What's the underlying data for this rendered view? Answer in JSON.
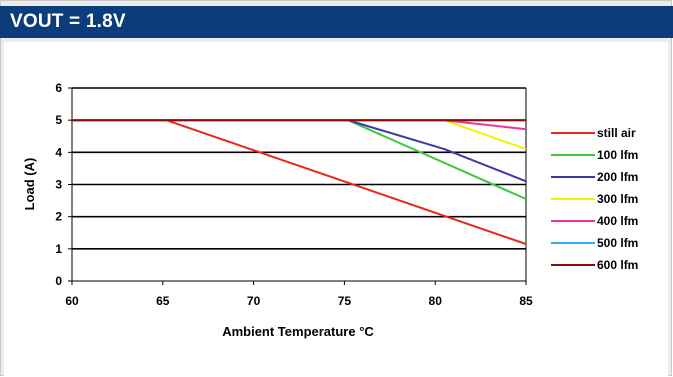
{
  "header": {
    "title": "VOUT = 1.8V"
  },
  "colors": {
    "header_bg": "#0b3d7a",
    "still_air": "#e8281f",
    "lfm100": "#3cc83c",
    "lfm200": "#3939a8",
    "lfm300": "#f2f200",
    "lfm400": "#f0339a",
    "lfm500": "#36a9f0",
    "lfm600": "#8b0b0b"
  },
  "chart_data": {
    "type": "line",
    "xlabel": "Ambient Temperature °C",
    "ylabel": "Load (A)",
    "xlim": [
      60,
      85
    ],
    "ylim": [
      0,
      6
    ],
    "xticks": [
      "60",
      "65",
      "70",
      "75",
      "80",
      "85"
    ],
    "yticks": [
      "0",
      "1",
      "2",
      "3",
      "4",
      "5",
      "6"
    ],
    "grid": "horizontal",
    "legend_position": "right",
    "series": [
      {
        "name": "still air",
        "color": "#e8281f",
        "points": [
          [
            60,
            5
          ],
          [
            65.2,
            5
          ],
          [
            85,
            1.15
          ]
        ]
      },
      {
        "name": "100 lfm",
        "color": "#3cc83c",
        "points": [
          [
            60,
            5
          ],
          [
            75.2,
            5
          ],
          [
            85,
            2.55
          ]
        ]
      },
      {
        "name": "200 lfm",
        "color": "#3939a8",
        "points": [
          [
            60,
            5
          ],
          [
            75.2,
            5
          ],
          [
            80.5,
            4.1
          ],
          [
            85,
            3.1
          ]
        ]
      },
      {
        "name": "300 lfm",
        "color": "#f2f200",
        "points": [
          [
            60,
            5
          ],
          [
            80.5,
            5
          ],
          [
            85,
            4.1
          ]
        ]
      },
      {
        "name": "400 lfm",
        "color": "#f0339a",
        "points": [
          [
            60,
            5
          ],
          [
            80.5,
            5
          ],
          [
            85,
            4.72
          ]
        ]
      },
      {
        "name": "500 lfm",
        "color": "#36a9f0",
        "points": [
          [
            60,
            5
          ],
          [
            85,
            5
          ]
        ]
      },
      {
        "name": "600 lfm",
        "color": "#8b0b0b",
        "points": [
          [
            60,
            5
          ],
          [
            85,
            5
          ]
        ]
      }
    ]
  }
}
